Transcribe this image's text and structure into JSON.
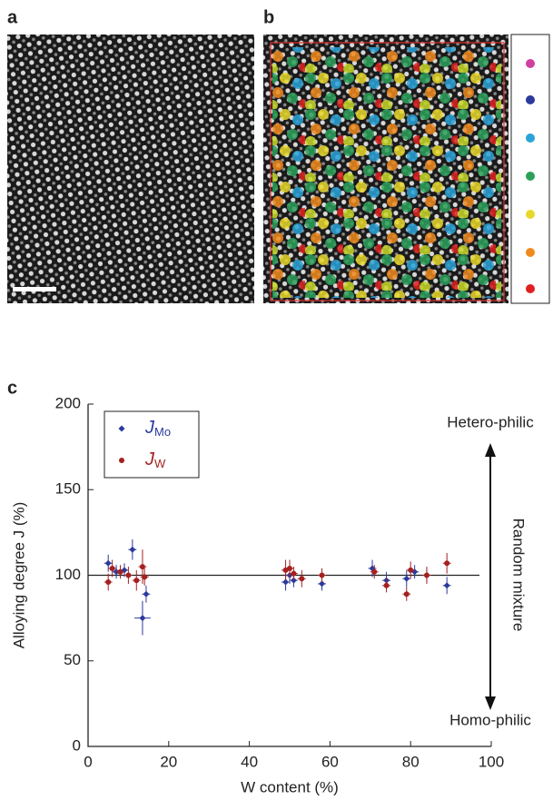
{
  "panel_labels": [
    "a",
    "b",
    "c"
  ],
  "chart_data": {
    "type": "scatter",
    "xlabel": "W content (%)",
    "ylabel": "Alloying degree J (%)",
    "xlim": [
      0,
      100
    ],
    "xticks": [
      0,
      20,
      40,
      60,
      80,
      100
    ],
    "ylim": [
      0,
      200
    ],
    "yticks": [
      0,
      50,
      100,
      150,
      200
    ],
    "hline": 100,
    "annotations": [
      "Hetero-philic",
      "Random mixture",
      "Homo-philic"
    ],
    "series": [
      {
        "name": "J",
        "name_subscript": "Mo",
        "color": "#2b3a9c",
        "marker": "diamond",
        "x": [
          5,
          7,
          9,
          11,
          13.5,
          14.4,
          49,
          50,
          51,
          58,
          70.5,
          74,
          79,
          81,
          84,
          89
        ],
        "values": [
          107,
          102,
          103,
          115,
          75,
          89,
          96,
          100,
          97,
          95,
          104,
          97,
          98,
          102,
          100,
          94
        ],
        "xerr": [
          1,
          1,
          1,
          1,
          2,
          1,
          1,
          1,
          1,
          1,
          1,
          1,
          1,
          1,
          1,
          1
        ],
        "yerr": [
          5,
          4,
          4,
          6,
          10,
          5,
          5,
          5,
          4,
          4,
          5,
          5,
          5,
          4,
          4,
          5
        ]
      },
      {
        "name": "J",
        "name_subscript": "W",
        "color": "#a52020",
        "marker": "circle",
        "x": [
          5,
          6,
          8,
          10,
          12,
          13.5,
          14,
          49,
          50,
          51,
          53,
          58,
          71,
          74,
          79,
          80,
          84,
          89
        ],
        "values": [
          96,
          104,
          102,
          100,
          97,
          105,
          99,
          103,
          104,
          101,
          98,
          100,
          102,
          94,
          89,
          103,
          100,
          107
        ],
        "xerr": [
          1,
          1,
          1,
          1,
          1,
          1,
          1,
          1,
          1,
          1,
          1,
          1,
          1,
          1,
          1,
          1,
          1,
          1
        ],
        "yerr": [
          5,
          5,
          4,
          5,
          6,
          10,
          5,
          6,
          5,
          4,
          5,
          4,
          4,
          4,
          4,
          5,
          5,
          6
        ]
      }
    ]
  }
}
